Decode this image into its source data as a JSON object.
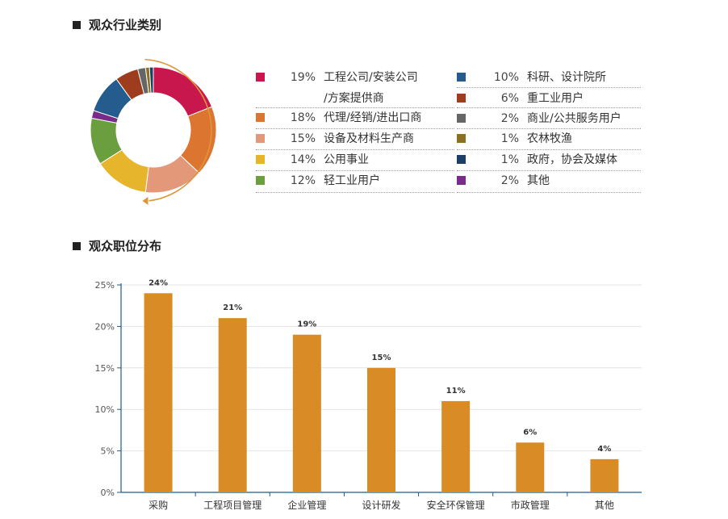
{
  "sections": {
    "industry_title": "观众行业类别",
    "position_title": "观众职位分布"
  },
  "colors": {
    "bar": "#d98b26",
    "arrow": "#e09538",
    "axis": "#1f5c8a",
    "grid": "#e4e4e4"
  },
  "chart_data": [
    {
      "type": "pie",
      "donut": true,
      "title": "观众行业类别",
      "slices": [
        {
          "label": "工程公司/安装公司/方案提供商",
          "label_lines": [
            "工程公司/安装公司",
            "/方案提供商"
          ],
          "value": 19,
          "pct_text": "19%",
          "color": "#c8174d"
        },
        {
          "label": "代理/经销/进出口商",
          "value": 18,
          "pct_text": "18%",
          "color": "#db7530"
        },
        {
          "label": "设备及材料生产商",
          "value": 15,
          "pct_text": "15%",
          "color": "#e3987a"
        },
        {
          "label": "公用事业",
          "value": 14,
          "pct_text": "14%",
          "color": "#e6b52c"
        },
        {
          "label": "轻工业用户",
          "value": 12,
          "pct_text": "12%",
          "color": "#6b9e3e"
        },
        {
          "label": "其他",
          "value": 2,
          "pct_text": "2%",
          "color": "#7a2a8a"
        },
        {
          "label": "科研、设计院所",
          "value": 10,
          "pct_text": "10%",
          "color": "#245c8e"
        },
        {
          "label": "重工业用户",
          "value": 6,
          "pct_text": "6%",
          "color": "#9e3d1d"
        },
        {
          "label": "商业/公共服务用户",
          "value": 2,
          "pct_text": "2%",
          "color": "#666666"
        },
        {
          "label": "农林牧渔",
          "value": 1,
          "pct_text": "1%",
          "color": "#8a7020"
        },
        {
          "label": "政府，协会及媒体",
          "value": 1,
          "pct_text": "1%",
          "color": "#1d3f66"
        }
      ],
      "legend_left": [
        0,
        1,
        2,
        3,
        4
      ],
      "legend_right": [
        6,
        7,
        8,
        9,
        10,
        5
      ]
    },
    {
      "type": "bar",
      "title": "观众职位分布",
      "categories": [
        "采购",
        "工程项目管理",
        "企业管理",
        "设计研发",
        "安全环保管理",
        "市政管理",
        "其他"
      ],
      "values": [
        24,
        21,
        19,
        15,
        11,
        6,
        4
      ],
      "value_labels": [
        "24%",
        "21%",
        "19%",
        "15%",
        "11%",
        "6%",
        "4%"
      ],
      "yticks": [
        "0%",
        "5%",
        "10%",
        "15%",
        "20%",
        "25%"
      ],
      "ylim": [
        0,
        25
      ],
      "grid": true
    }
  ]
}
